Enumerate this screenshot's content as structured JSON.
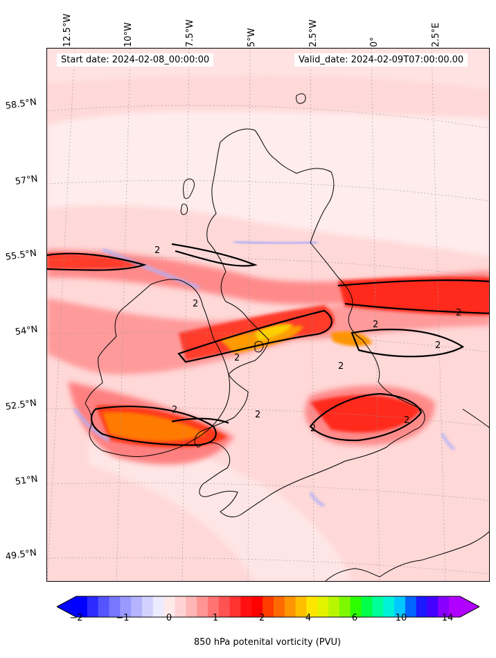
{
  "map": {
    "start_date": "Start date: 2024-02-08_00:00:00",
    "valid_date": "Valid_date: 2024-02-09T07:00:00.00",
    "longitude_labels": [
      "12.5°W",
      "10°W",
      "7.5°W",
      "5°W",
      "2.5°W",
      "0°",
      "2.5°E"
    ],
    "latitude_labels": [
      "58.5°N",
      "57°N",
      "55.5°N",
      "54°N",
      "52.5°N",
      "51°N",
      "49.5°N"
    ],
    "contour_label": "2",
    "field_colors": {
      "background": "#ffd8d8",
      "light": "#ffecec",
      "medium": "#ff8a8a",
      "strong": "#ff2a1a",
      "orange": "#ff7a00",
      "yellow": "#ffd000",
      "blue": "#aab4ff",
      "coast": "#000000"
    }
  },
  "colorbar": {
    "label": "850 hPa potenital vorticity (PVU)",
    "ticks": [
      "−2",
      "−1",
      "0",
      "1",
      "2",
      "4",
      "6",
      "10",
      "14"
    ],
    "colors": [
      "#0000ff",
      "#2b2bff",
      "#5555ff",
      "#7777ff",
      "#9999ff",
      "#b4b4ff",
      "#d2d2ff",
      "#ecebff",
      "#ffeaea",
      "#ffd3d3",
      "#ffb6b6",
      "#ff9494",
      "#ff7373",
      "#ff5252",
      "#ff3131",
      "#ff0f0f",
      "#ff0000",
      "#ff3c00",
      "#ff6a00",
      "#ff9500",
      "#ffbf00",
      "#ffe600",
      "#e3f200",
      "#b8f500",
      "#7cf900",
      "#2cff00",
      "#00ff48",
      "#00ff96",
      "#00f2d9",
      "#00c8ff",
      "#0066ff",
      "#1a1aff",
      "#4400ff",
      "#8800ff",
      "#b000ff"
    ]
  }
}
